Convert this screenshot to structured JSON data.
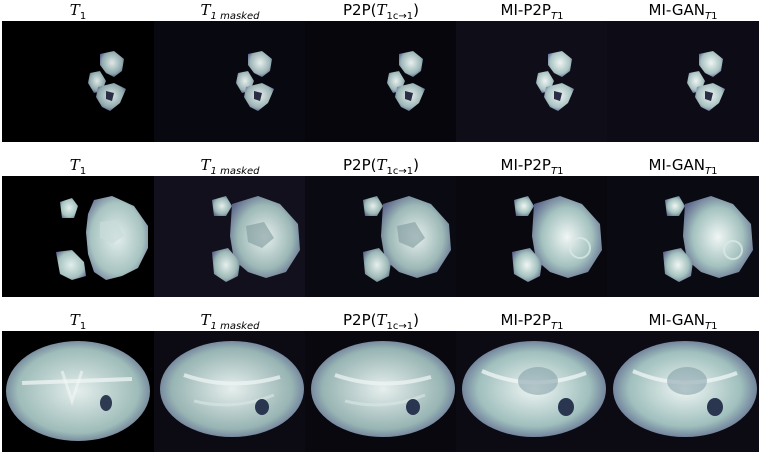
{
  "columns": [
    {
      "base": "T",
      "sub": "1",
      "sub_italic": false,
      "label": "T1"
    },
    {
      "base": "T",
      "sub": "1 masked",
      "sub_italic": true,
      "label": "T1 masked"
    },
    {
      "base": "P2P(",
      "sub": "",
      "label": "P2P(T1c→1)"
    },
    {
      "base": "MI-P2P",
      "sub": "T1",
      "label": "MI-P2PT1"
    },
    {
      "base": "MI-GAN",
      "sub": "T1",
      "label": "MI-GANT1"
    }
  ],
  "title_text": {
    "t1": {
      "main": "T",
      "sub": "1"
    },
    "t1_masked": {
      "main": "T",
      "sub": "1 masked"
    },
    "p2p": {
      "pre": "P2P(",
      "main": "T",
      "sub": "1c→1",
      "post": ")"
    },
    "mi_p2p": {
      "main": "MI-P2P",
      "sub_main": "T",
      "sub_num": "1"
    },
    "mi_gan": {
      "main": "MI-GAN",
      "sub_main": "T",
      "sub_num": "1"
    }
  },
  "panel_backgrounds": {
    "row1": [
      "#000000",
      "#080810",
      "#06060c",
      "#0e0d18",
      "#0d0c16"
    ],
    "row2": [
      "#000000",
      "#12101c",
      "#0a0a12",
      "#08080e",
      "#0a0a12"
    ],
    "row3": [
      "#000000",
      "#0c0b14",
      "#08080e",
      "#0c0b14",
      "#0c0b14"
    ]
  },
  "tissue_colors": {
    "bright": "#e4f0ee",
    "mid": "#9fbdba",
    "dark": "#3a4a58",
    "outline": "#5a5a8c"
  }
}
